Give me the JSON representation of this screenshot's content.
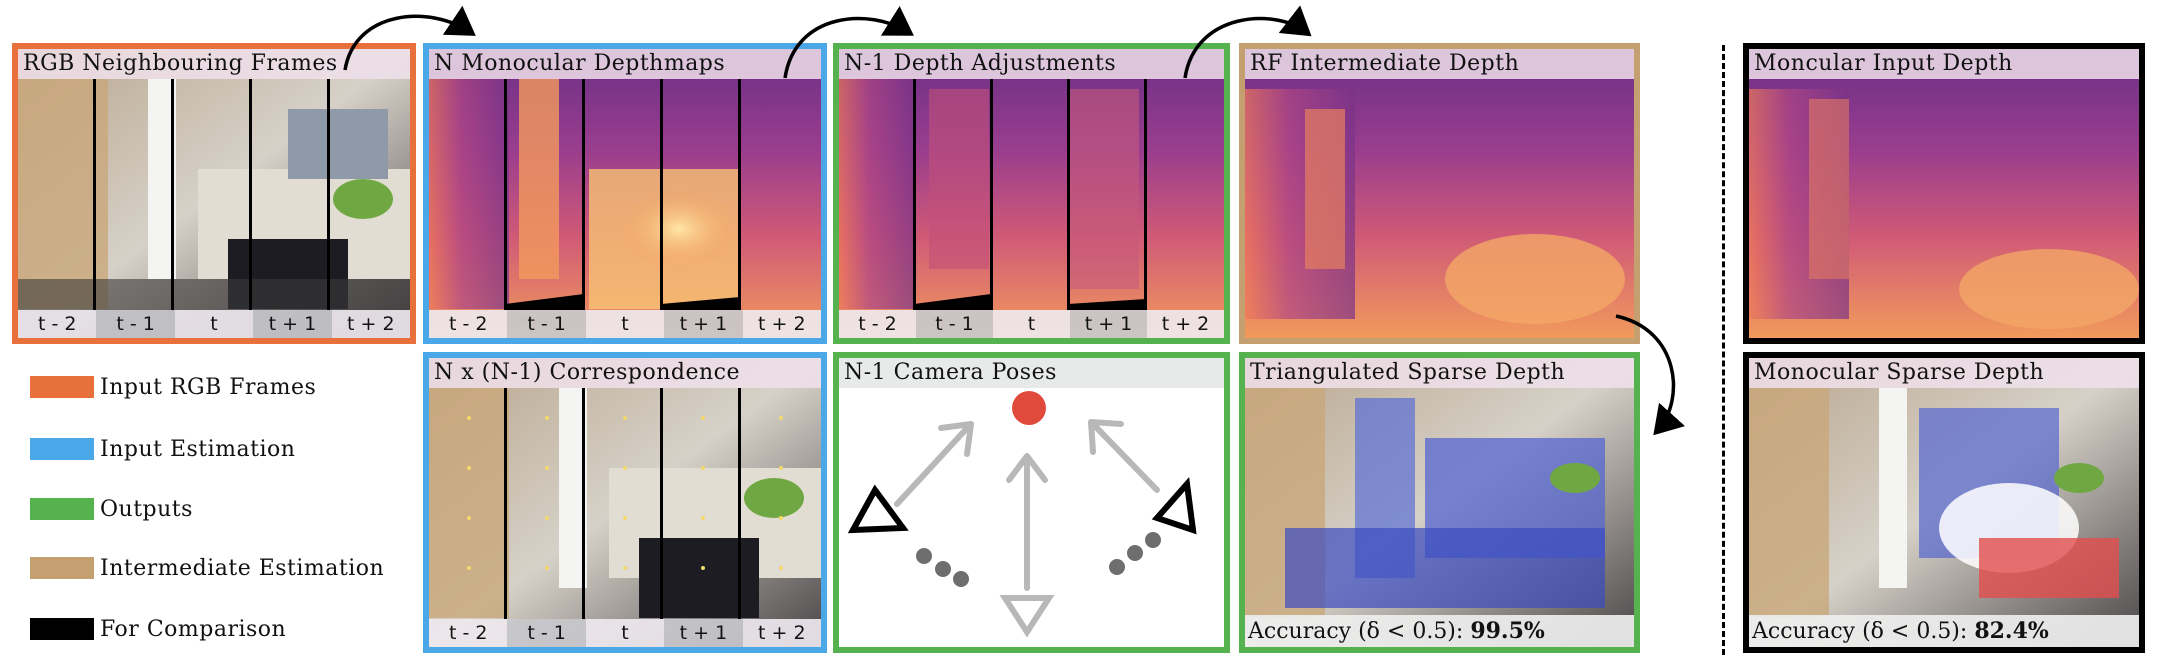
{
  "panels": {
    "rgb": {
      "title": "RGB Neighbouring Frames",
      "ticks": [
        "t - 2",
        "t - 1",
        "t",
        "t + 1",
        "t + 2"
      ]
    },
    "mono": {
      "title": "N Monocular Depthmaps",
      "ticks": [
        "t - 2",
        "t - 1",
        "t",
        "t + 1",
        "t + 2"
      ]
    },
    "adjust": {
      "title": "N-1 Depth Adjustments",
      "ticks": [
        "t - 2",
        "t - 1",
        "t",
        "t + 1",
        "t + 2"
      ]
    },
    "rf": {
      "title": "RF Intermediate Depth"
    },
    "mono_input": {
      "title": "Moncular Input Depth"
    },
    "corr": {
      "title": "N x (N-1) Correspondence",
      "ticks": [
        "t - 2",
        "t - 1",
        "t",
        "t + 1",
        "t + 2"
      ]
    },
    "poses": {
      "title": "N-1 Camera Poses"
    },
    "tri": {
      "title": "Triangulated Sparse Depth",
      "acc_label": "Accuracy (δ < 0.5): ",
      "acc_value": "99.5%"
    },
    "mono_sparse": {
      "title": "Monocular Sparse Depth",
      "acc_label": "Accuracy (δ < 0.5): ",
      "acc_value": "82.4%"
    }
  },
  "legend": [
    {
      "label": "Input RGB Frames",
      "color": "#e8703a"
    },
    {
      "label": "Input Estimation",
      "color": "#4aa8e8"
    },
    {
      "label": "Outputs",
      "color": "#55b24f"
    },
    {
      "label": "Intermediate Estimation",
      "color": "#c4a070"
    },
    {
      "label": "For Comparison",
      "color": "#000000"
    }
  ],
  "colors": {
    "rgb": "#e8703a",
    "estimation": "#4aa8e8",
    "output": "#55b24f",
    "intermediate": "#c4a070",
    "comparison": "#000000",
    "camera_dot": "#e04a3a",
    "pose_grey": "#b8b8b8"
  }
}
